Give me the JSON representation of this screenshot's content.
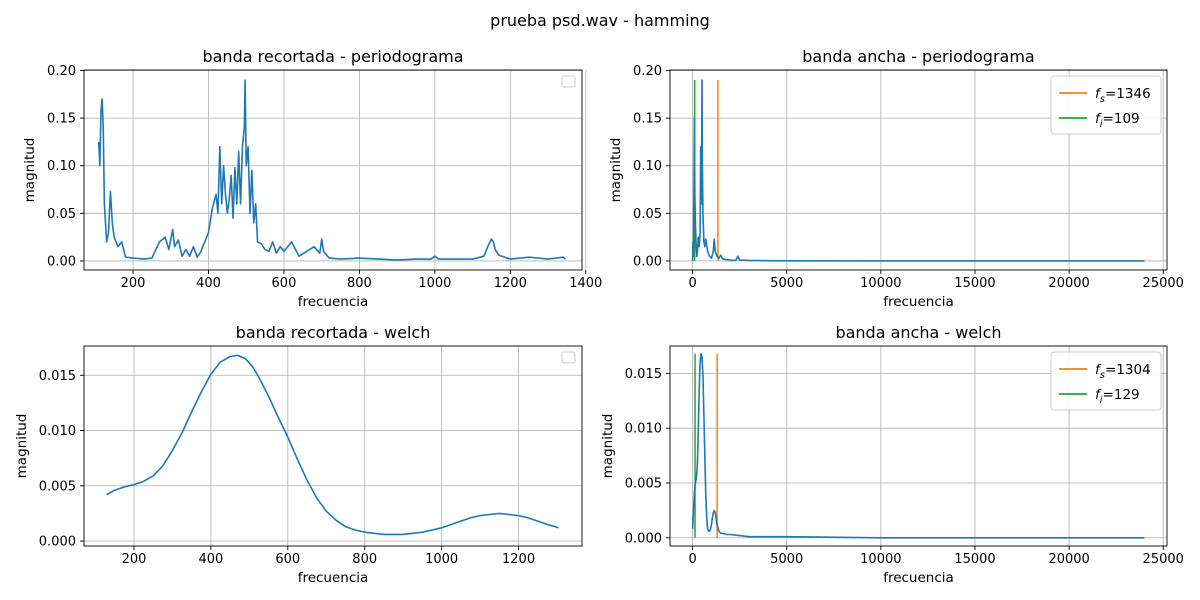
{
  "figure": {
    "suptitle": "prueba psd.wav - hamming"
  },
  "colors": {
    "series": "#1f77b4",
    "fs": "#ff7f0e",
    "fi": "#2ca02c",
    "grid": "#b0b0b0"
  },
  "chart_data": [
    {
      "id": "p1",
      "type": "line",
      "title": "banda recortada - periodograma",
      "xlabel": "frecuencia",
      "ylabel": "magnitud",
      "xlim": [
        70,
        1390
      ],
      "ylim": [
        -0.0095,
        0.2005
      ],
      "xticks": [
        200,
        400,
        600,
        800,
        1000,
        1200,
        1400
      ],
      "xtick_labels": [
        "200",
        "400",
        "600",
        "800",
        "1000",
        "1200",
        "1400"
      ],
      "yticks": [
        0.0,
        0.05,
        0.1,
        0.15,
        0.2
      ],
      "ytick_labels": [
        "0.00",
        "0.05",
        "0.10",
        "0.15",
        "0.20"
      ],
      "grid": true,
      "legend": {
        "position": "upper-right",
        "entries": []
      },
      "series": [
        {
          "x": [
            109,
            112,
            115,
            118,
            121,
            124,
            127,
            130,
            135,
            140,
            145,
            150,
            160,
            170,
            180,
            200,
            230,
            250,
            270,
            285,
            295,
            305,
            310,
            320,
            330,
            340,
            350,
            360,
            370,
            380,
            390,
            400,
            410,
            420,
            425,
            430,
            435,
            440,
            445,
            450,
            455,
            460,
            465,
            470,
            475,
            480,
            485,
            490,
            495,
            497,
            500,
            505,
            510,
            515,
            520,
            525,
            530,
            540,
            550,
            560,
            570,
            580,
            590,
            600,
            620,
            640,
            660,
            680,
            695,
            700,
            705,
            720,
            750,
            800,
            850,
            900,
            950,
            990,
            1000,
            1010,
            1050,
            1100,
            1130,
            1140,
            1150,
            1155,
            1160,
            1170,
            1200,
            1250,
            1300,
            1340,
            1346
          ],
          "y": [
            0.125,
            0.1,
            0.157,
            0.17,
            0.14,
            0.06,
            0.04,
            0.02,
            0.03,
            0.073,
            0.04,
            0.025,
            0.015,
            0.02,
            0.004,
            0.003,
            0.002,
            0.003,
            0.02,
            0.025,
            0.012,
            0.033,
            0.015,
            0.022,
            0.005,
            0.012,
            0.005,
            0.015,
            0.004,
            0.01,
            0.02,
            0.03,
            0.055,
            0.07,
            0.05,
            0.12,
            0.06,
            0.1,
            0.07,
            0.05,
            0.065,
            0.09,
            0.045,
            0.098,
            0.06,
            0.115,
            0.06,
            0.12,
            0.14,
            0.19,
            0.1,
            0.12,
            0.05,
            0.095,
            0.04,
            0.06,
            0.02,
            0.018,
            0.012,
            0.01,
            0.02,
            0.008,
            0.015,
            0.01,
            0.02,
            0.005,
            0.01,
            0.015,
            0.008,
            0.023,
            0.01,
            0.003,
            0.002,
            0.003,
            0.002,
            0.001,
            0.002,
            0.002,
            0.005,
            0.002,
            0.002,
            0.002,
            0.005,
            0.015,
            0.023,
            0.02,
            0.012,
            0.006,
            0.002,
            0.004,
            0.002,
            0.004,
            0.002
          ]
        }
      ]
    },
    {
      "id": "p2",
      "type": "line",
      "title": "banda ancha - periodograma",
      "xlabel": "frecuencia",
      "ylabel": "magnitud",
      "xlim": [
        -1200,
        25200
      ],
      "ylim": [
        -0.0095,
        0.2005
      ],
      "xticks": [
        0,
        5000,
        10000,
        15000,
        20000,
        25000
      ],
      "xtick_labels": [
        "0",
        "5000",
        "10000",
        "15000",
        "20000",
        "25000"
      ],
      "yticks": [
        0.0,
        0.05,
        0.1,
        0.15,
        0.2
      ],
      "ytick_labels": [
        "0.00",
        "0.05",
        "0.10",
        "0.15",
        "0.20"
      ],
      "grid": true,
      "legend": {
        "position": "upper-right",
        "entries": [
          {
            "base": "f",
            "sub": "s",
            "value": "=1346"
          },
          {
            "base": "f",
            "sub": "i",
            "value": "=109"
          }
        ]
      },
      "vlines": [
        {
          "x": 1346,
          "y0": 0.0,
          "y1": 0.19,
          "color": "#ff7f0e"
        },
        {
          "x": 109,
          "y0": 0.0,
          "y1": 0.19,
          "color": "#2ca02c"
        }
      ],
      "series": [
        {
          "x": [
            0,
            20,
            50,
            80,
            100,
            120,
            150,
            180,
            220,
            260,
            300,
            350,
            400,
            430,
            460,
            480,
            500,
            520,
            550,
            600,
            650,
            700,
            800,
            900,
            1000,
            1100,
            1150,
            1200,
            1300,
            1400,
            1500,
            1600,
            2000,
            2300,
            2400,
            2500,
            3000,
            4000,
            5000,
            10000,
            15000,
            20000,
            24000
          ],
          "y": [
            0.0,
            0.02,
            0.005,
            0.1,
            0.15,
            0.07,
            0.04,
            0.02,
            0.005,
            0.01,
            0.025,
            0.015,
            0.03,
            0.12,
            0.06,
            0.1,
            0.19,
            0.1,
            0.05,
            0.02,
            0.015,
            0.023,
            0.01,
            0.005,
            0.003,
            0.01,
            0.023,
            0.01,
            0.005,
            0.003,
            0.006,
            0.002,
            0.001,
            0.0005,
            0.005,
            0.001,
            0.0005,
            0.0003,
            0.0001,
            0.0,
            0.0,
            0.0,
            0.0
          ]
        }
      ]
    },
    {
      "id": "p3",
      "type": "line",
      "title": "banda recortada - welch",
      "xlabel": "frecuencia",
      "ylabel": "magnitud",
      "xlim": [
        70,
        1365
      ],
      "ylim": [
        -0.00045,
        0.01765
      ],
      "xticks": [
        200,
        400,
        600,
        800,
        1000,
        1200
      ],
      "xtick_labels": [
        "200",
        "400",
        "600",
        "800",
        "1000",
        "1200"
      ],
      "yticks": [
        0.0,
        0.005,
        0.01,
        0.015
      ],
      "ytick_labels": [
        "0.000",
        "0.005",
        "0.010",
        "0.015"
      ],
      "grid": true,
      "legend": {
        "position": "upper-right",
        "entries": []
      },
      "series": [
        {
          "x": [
            129,
            150,
            175,
            200,
            225,
            250,
            275,
            300,
            325,
            350,
            375,
            400,
            425,
            450,
            470,
            490,
            510,
            525,
            550,
            575,
            600,
            625,
            650,
            675,
            700,
            725,
            750,
            775,
            800,
            825,
            850,
            875,
            900,
            925,
            950,
            975,
            1000,
            1025,
            1050,
            1075,
            1100,
            1125,
            1150,
            1175,
            1200,
            1225,
            1250,
            1275,
            1304
          ],
          "y": [
            0.0042,
            0.0046,
            0.0049,
            0.0051,
            0.0054,
            0.0059,
            0.0068,
            0.0082,
            0.0098,
            0.0117,
            0.0135,
            0.0151,
            0.0162,
            0.0167,
            0.0168,
            0.0165,
            0.0157,
            0.0148,
            0.0131,
            0.0112,
            0.0094,
            0.0074,
            0.0055,
            0.0039,
            0.0027,
            0.0019,
            0.0013,
            0.001,
            0.0008,
            0.0007,
            0.0006,
            0.0006,
            0.0006,
            0.0007,
            0.0008,
            0.001,
            0.0012,
            0.0015,
            0.0018,
            0.0021,
            0.0023,
            0.0024,
            0.0025,
            0.0024,
            0.0023,
            0.0021,
            0.0018,
            0.0015,
            0.0012
          ]
        }
      ]
    },
    {
      "id": "p4",
      "type": "line",
      "title": "banda ancha - welch",
      "xlabel": "frecuencia",
      "ylabel": "magnitud",
      "xlim": [
        -1200,
        25200
      ],
      "ylim": [
        -0.00075,
        0.0175
      ],
      "xticks": [
        0,
        5000,
        10000,
        15000,
        20000,
        25000
      ],
      "xtick_labels": [
        "0",
        "5000",
        "10000",
        "15000",
        "20000",
        "25000"
      ],
      "yticks": [
        0.0,
        0.005,
        0.01,
        0.015
      ],
      "ytick_labels": [
        "0.000",
        "0.005",
        "0.010",
        "0.015"
      ],
      "grid": true,
      "legend": {
        "position": "upper-right",
        "entries": [
          {
            "base": "f",
            "sub": "s",
            "value": "=1304"
          },
          {
            "base": "f",
            "sub": "i",
            "value": "=129"
          }
        ]
      },
      "vlines": [
        {
          "x": 1304,
          "y0": 0.0,
          "y1": 0.0168,
          "color": "#ff7f0e"
        },
        {
          "x": 129,
          "y0": 0.0,
          "y1": 0.0168,
          "color": "#2ca02c"
        }
      ],
      "series": [
        {
          "x": [
            0,
            50,
            100,
            150,
            200,
            250,
            300,
            350,
            400,
            450,
            500,
            550,
            600,
            650,
            700,
            750,
            800,
            850,
            900,
            950,
            1000,
            1050,
            1100,
            1150,
            1200,
            1250,
            1300,
            1400,
            1500,
            1600,
            1800,
            2000,
            2500,
            3000,
            5000,
            10000,
            15000,
            20000,
            24000
          ],
          "y": [
            0.0008,
            0.0025,
            0.0042,
            0.005,
            0.0055,
            0.0065,
            0.0095,
            0.0135,
            0.016,
            0.0168,
            0.0165,
            0.0148,
            0.0112,
            0.0074,
            0.0039,
            0.0019,
            0.0008,
            0.0006,
            0.0006,
            0.0008,
            0.0012,
            0.0018,
            0.0023,
            0.0025,
            0.0023,
            0.0018,
            0.0012,
            0.0006,
            0.0004,
            0.0004,
            0.0003,
            0.0003,
            0.0002,
            0.0001,
            0.0001,
            0.0,
            0.0,
            0.0,
            0.0
          ]
        }
      ]
    }
  ]
}
